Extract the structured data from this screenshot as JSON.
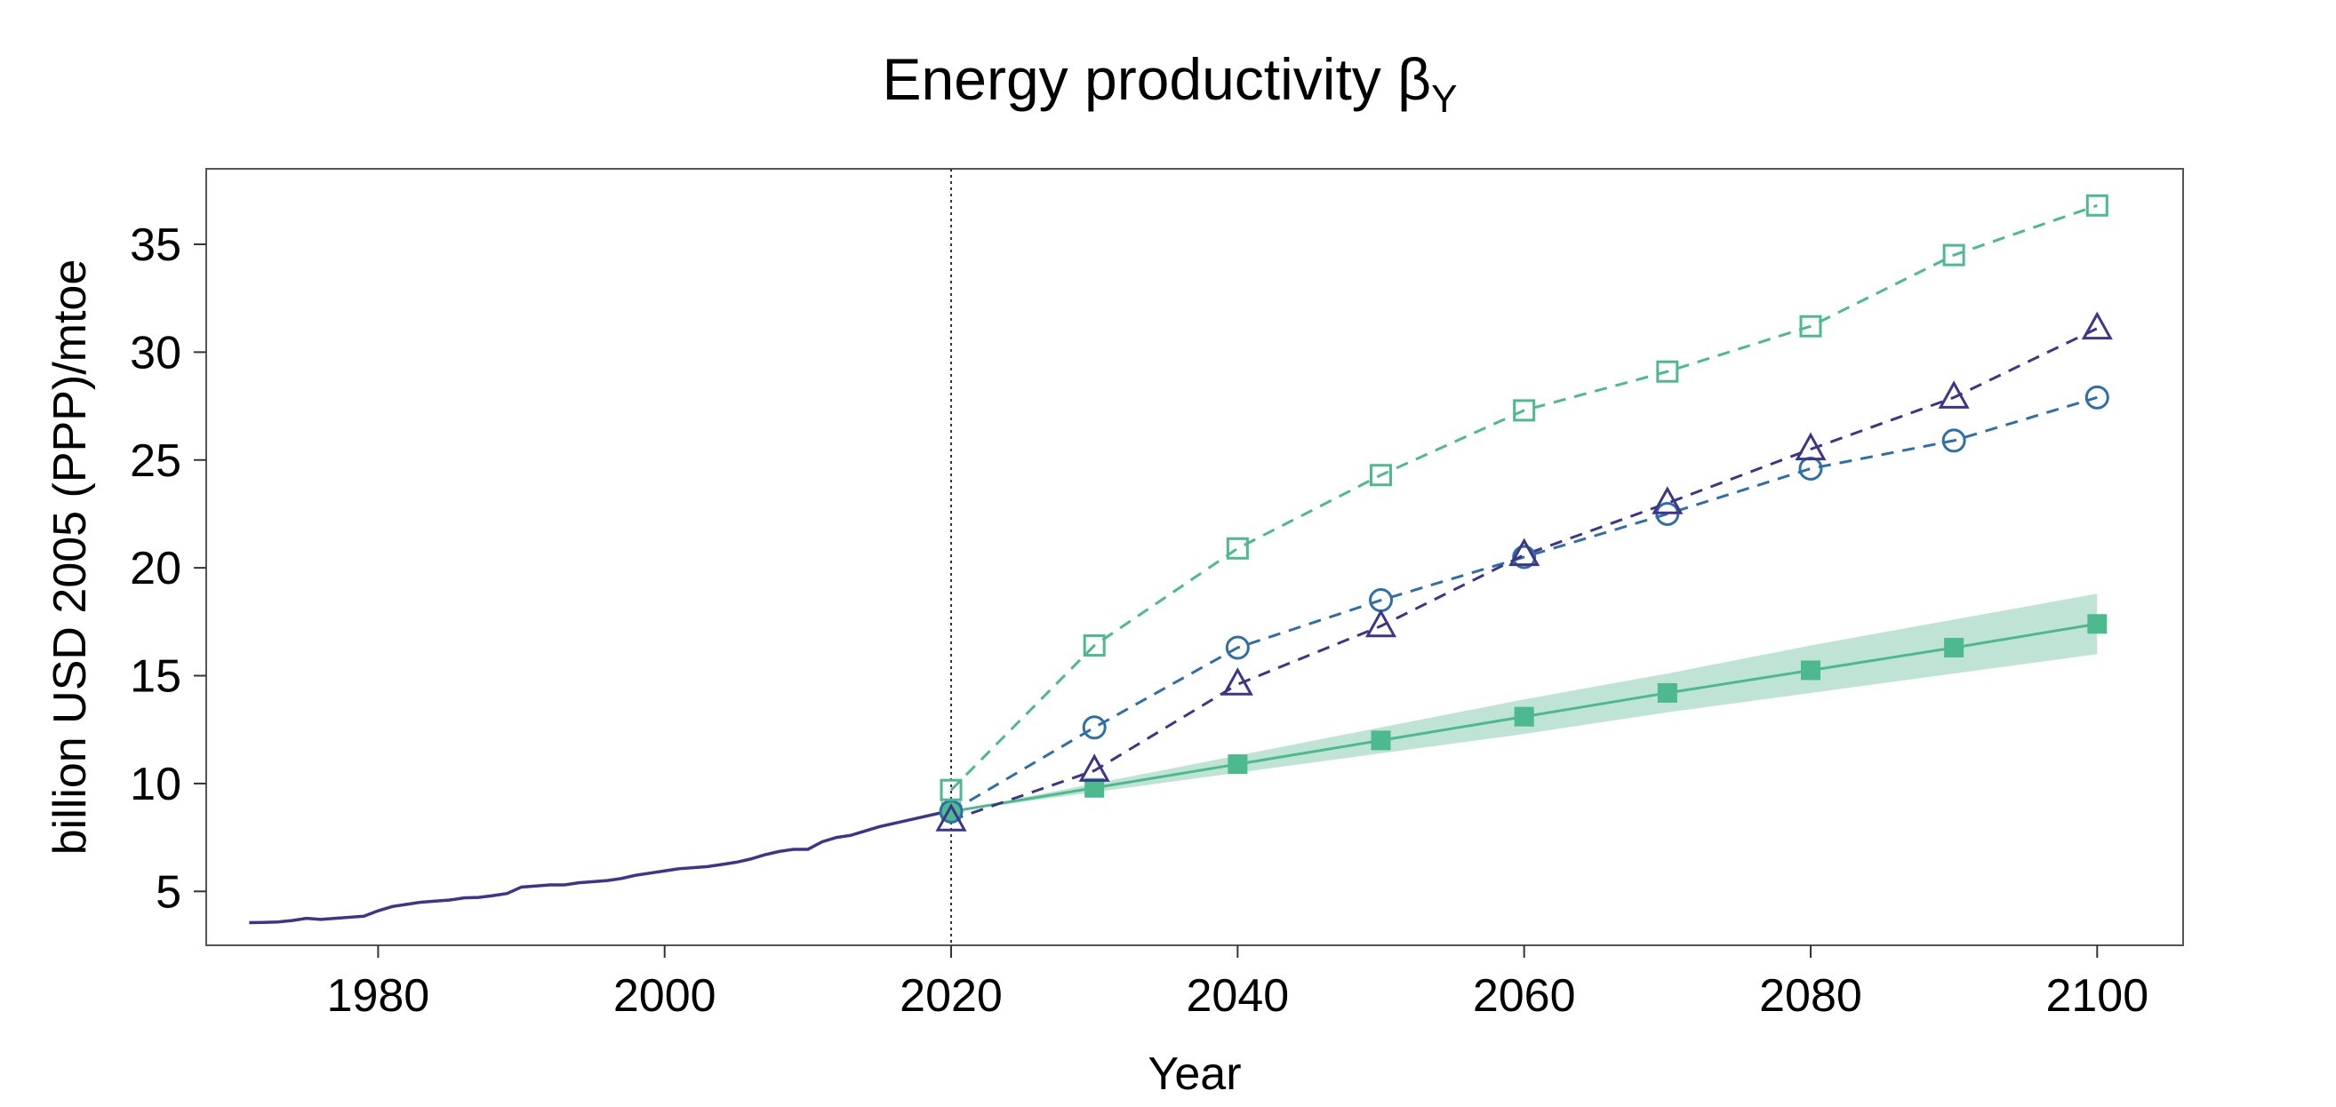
{
  "chart_data": {
    "type": "line",
    "title": "Energy productivity β",
    "title_subscript": "Y",
    "xlabel": "Year",
    "ylabel": "billion USD 2005 (PPP)/mtoe",
    "xlim": [
      1968,
      2106
    ],
    "ylim": [
      2.5,
      38.5
    ],
    "xticks": [
      1980,
      2000,
      2020,
      2040,
      2060,
      2080,
      2100
    ],
    "yticks": [
      5,
      10,
      15,
      20,
      25,
      30,
      35
    ],
    "reference_line_x": 2020,
    "colors": {
      "historical": "#3d3589",
      "projection": "#4db98f",
      "band": "#bfe3d4",
      "circle_series": "#2e6fa8",
      "triangle_series": "#3d3589",
      "square_series": "#4db98f",
      "frame": "#555555"
    },
    "historical": {
      "x": [
        1971,
        1972,
        1973,
        1974,
        1975,
        1976,
        1977,
        1978,
        1979,
        1980,
        1981,
        1982,
        1983,
        1984,
        1985,
        1986,
        1987,
        1988,
        1989,
        1990,
        1991,
        1992,
        1993,
        1994,
        1995,
        1996,
        1997,
        1998,
        1999,
        2000,
        2001,
        2002,
        2003,
        2004,
        2005,
        2006,
        2007,
        2008,
        2009,
        2010,
        2011,
        2012,
        2013,
        2014,
        2015,
        2016,
        2017,
        2018,
        2019,
        2020
      ],
      "y": [
        3.55,
        3.56,
        3.58,
        3.65,
        3.75,
        3.7,
        3.75,
        3.8,
        3.85,
        4.1,
        4.3,
        4.4,
        4.5,
        4.55,
        4.6,
        4.7,
        4.72,
        4.8,
        4.9,
        5.2,
        5.25,
        5.3,
        5.3,
        5.4,
        5.45,
        5.5,
        5.6,
        5.75,
        5.85,
        5.95,
        6.05,
        6.1,
        6.15,
        6.25,
        6.35,
        6.5,
        6.7,
        6.85,
        6.95,
        6.95,
        7.3,
        7.5,
        7.6,
        7.8,
        8.0,
        8.15,
        8.3,
        8.45,
        8.6,
        8.75
      ]
    },
    "series": [
      {
        "name": "projection",
        "marker": "filled-square",
        "style": "solid",
        "x": [
          2020,
          2030,
          2040,
          2050,
          2060,
          2070,
          2080,
          2090,
          2100
        ],
        "y": [
          8.7,
          9.8,
          10.9,
          12.0,
          13.1,
          14.2,
          15.25,
          16.3,
          17.4
        ],
        "band_upper": [
          8.7,
          10.0,
          11.3,
          12.6,
          13.9,
          15.1,
          16.4,
          17.6,
          18.8
        ],
        "band_lower": [
          8.7,
          9.6,
          10.5,
          11.4,
          12.3,
          13.3,
          14.2,
          15.1,
          16.0
        ]
      },
      {
        "name": "circle",
        "marker": "open-circle",
        "style": "dashed",
        "x": [
          2020,
          2030,
          2040,
          2050,
          2060,
          2070,
          2080,
          2090,
          2100
        ],
        "y": [
          8.7,
          12.6,
          16.3,
          18.5,
          20.5,
          22.5,
          24.6,
          25.9,
          27.9
        ]
      },
      {
        "name": "triangle",
        "marker": "open-triangle",
        "style": "dashed",
        "x": [
          2020,
          2030,
          2040,
          2050,
          2060,
          2070,
          2080,
          2090,
          2100
        ],
        "y": [
          8.3,
          10.6,
          14.6,
          17.3,
          20.6,
          23.0,
          25.5,
          27.9,
          31.1
        ]
      },
      {
        "name": "square",
        "marker": "open-square",
        "style": "dashed",
        "x": [
          2020,
          2030,
          2040,
          2050,
          2060,
          2070,
          2080,
          2090,
          2100
        ],
        "y": [
          9.7,
          16.4,
          20.9,
          24.3,
          27.3,
          29.1,
          31.2,
          34.5,
          36.8
        ]
      }
    ]
  }
}
